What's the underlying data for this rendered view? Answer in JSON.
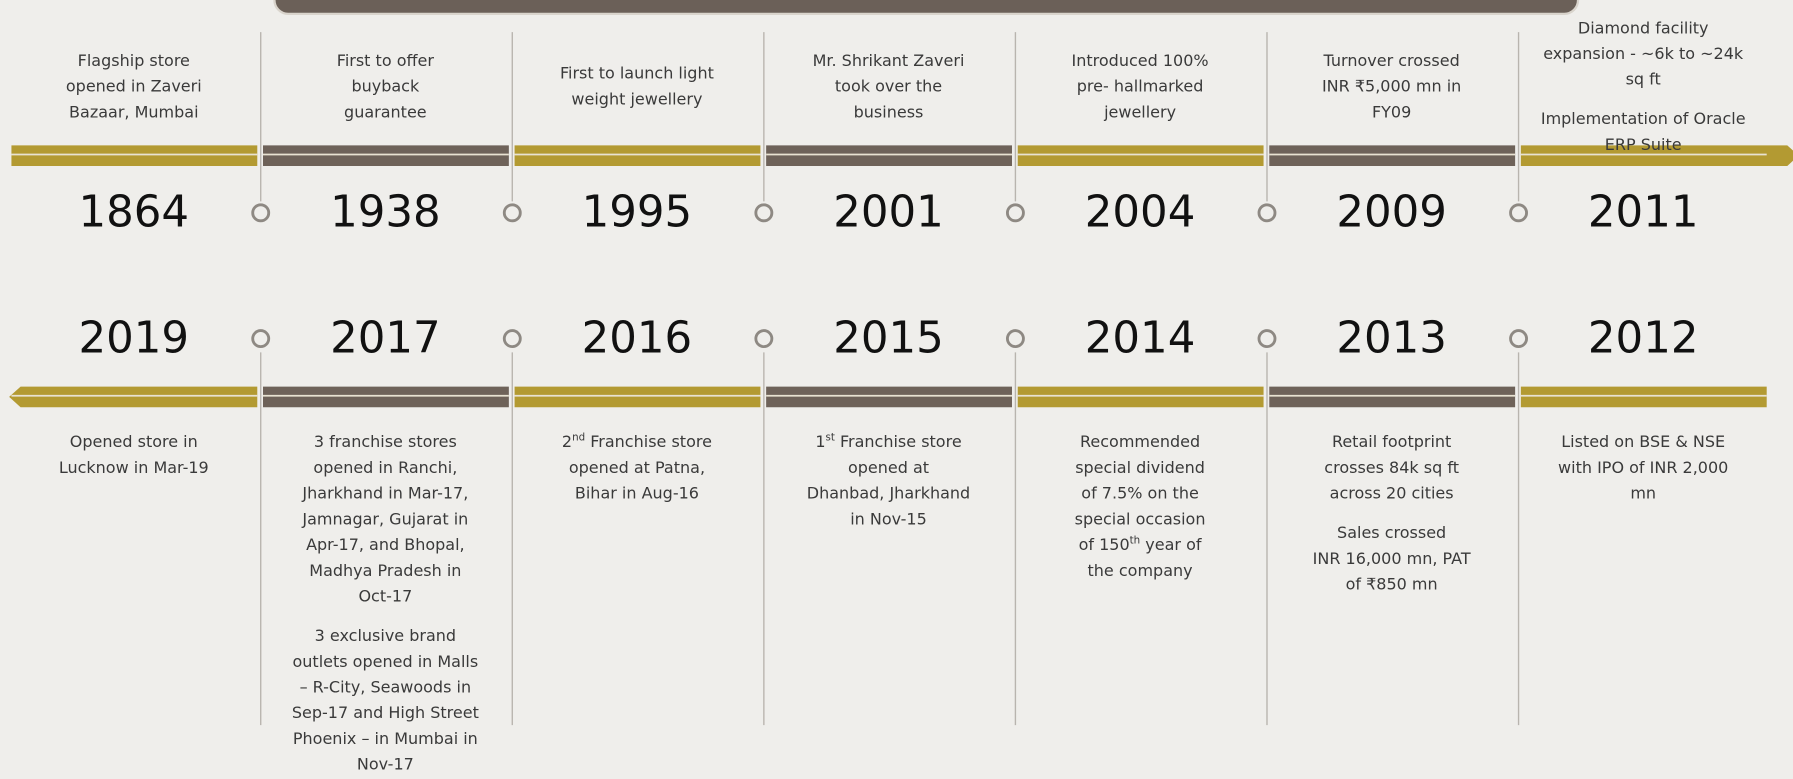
{
  "timeline": {
    "top": [
      {
        "year": "1864",
        "paragraphs": [
          [
            "Flagship store",
            "opened in Zaveri",
            "Bazaar, Mumbai"
          ]
        ]
      },
      {
        "year": "1938",
        "paragraphs": [
          [
            "First to offer",
            "buyback",
            "guarantee"
          ]
        ]
      },
      {
        "year": "1995",
        "paragraphs": [
          [
            "First to launch light",
            "weight jewellery"
          ]
        ]
      },
      {
        "year": "2001",
        "paragraphs": [
          [
            "Mr. Shrikant Zaveri",
            "took over the",
            "business"
          ]
        ]
      },
      {
        "year": "2004",
        "paragraphs": [
          [
            "Introduced 100%",
            "pre- hallmarked",
            "jewellery"
          ]
        ]
      },
      {
        "year": "2009",
        "paragraphs": [
          [
            "Turnover crossed",
            "INR ₹5,000 mn in",
            "FY09"
          ]
        ]
      },
      {
        "year": "2011",
        "paragraphs": [
          [
            "Diamond facility",
            "expansion - ~6k to ~24k",
            "sq ft"
          ],
          [
            "Implementation of Oracle",
            "ERP Suite"
          ]
        ]
      }
    ],
    "bottom": [
      {
        "year": "2019",
        "paragraphs": [
          [
            "Opened store in",
            "Lucknow in Mar-19"
          ]
        ]
      },
      {
        "year": "2017",
        "paragraphs": [
          [
            "3 franchise stores",
            "opened in Ranchi,",
            "Jharkhand in Mar-17,",
            "Jamnagar, Gujarat in",
            "Apr-17, and Bhopal,",
            "Madhya Pradesh in",
            "Oct-17"
          ],
          [
            "3 exclusive brand",
            "outlets opened in Malls",
            "– R-City, Seawoods in",
            "Sep-17 and High Street",
            "Phoenix – in Mumbai in",
            "Nov-17"
          ]
        ]
      },
      {
        "year": "2016",
        "paragraphs": [
          [
            [
              "2",
              {
                "sup": "nd"
              },
              " Franchise store"
            ],
            "opened at Patna,",
            "Bihar in Aug-16"
          ]
        ]
      },
      {
        "year": "2015",
        "paragraphs": [
          [
            [
              "1",
              {
                "sup": "st"
              },
              " Franchise store"
            ],
            "opened at",
            "Dhanbad, Jharkhand",
            "in Nov-15"
          ]
        ]
      },
      {
        "year": "2014",
        "paragraphs": [
          [
            "Recommended",
            "special dividend",
            "of 7.5% on the",
            "special occasion",
            [
              "of 150",
              {
                "sup": "th"
              },
              " year of"
            ],
            "the company"
          ]
        ]
      },
      {
        "year": "2013",
        "paragraphs": [
          [
            "Retail footprint",
            "crosses 84k sq ft",
            "across 20 cities"
          ],
          [
            "Sales crossed",
            "INR 16,000 mn, PAT",
            "of ₹850 mn"
          ]
        ]
      },
      {
        "year": "2012",
        "paragraphs": [
          [
            "Listed on BSE & NSE",
            "with IPO of INR 2,000",
            "mn"
          ]
        ]
      }
    ]
  }
}
